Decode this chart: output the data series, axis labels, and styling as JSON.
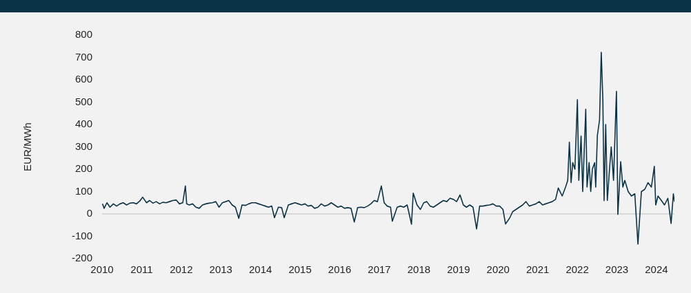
{
  "chart_data": {
    "type": "line",
    "ylabel": "EUR/MWh",
    "xlim": [
      "2010",
      "2024-06-15"
    ],
    "xticks": [
      "2010",
      "2011",
      "2012",
      "2013",
      "2014",
      "2015",
      "2016",
      "2017",
      "2018",
      "2019",
      "2020",
      "2021",
      "2022",
      "2023",
      "2024"
    ],
    "ylim": [
      -200,
      800
    ],
    "yticks": [
      -200,
      -100,
      0,
      100,
      200,
      300,
      400,
      500,
      600,
      700,
      800
    ],
    "grid": false,
    "legend": false,
    "marker": "none",
    "line_style": "solid",
    "ref_lines": [
      {
        "axis": "y",
        "value": 0,
        "color": "#d9d9d9"
      }
    ],
    "x": [
      "2010-01-05",
      "2010-01-20",
      "2010-02-15",
      "2010-03-15",
      "2010-04-15",
      "2010-05-15",
      "2010-06-15",
      "2010-07-15",
      "2010-08-15",
      "2010-09-15",
      "2010-10-15",
      "2010-11-15",
      "2010-12-15",
      "2011-01-10",
      "2011-02-15",
      "2011-03-15",
      "2011-04-15",
      "2011-05-15",
      "2011-06-15",
      "2011-07-15",
      "2011-08-15",
      "2011-09-15",
      "2011-10-15",
      "2011-11-15",
      "2011-12-15",
      "2012-01-15",
      "2012-02-08",
      "2012-02-20",
      "2012-03-15",
      "2012-04-15",
      "2012-05-15",
      "2012-06-15",
      "2012-07-15",
      "2012-08-15",
      "2012-09-15",
      "2012-10-15",
      "2012-11-15",
      "2012-12-15",
      "2013-01-15",
      "2013-02-15",
      "2013-03-15",
      "2013-04-15",
      "2013-05-15",
      "2013-06-15",
      "2013-07-15",
      "2013-08-15",
      "2013-09-15",
      "2013-10-15",
      "2013-11-15",
      "2013-12-15",
      "2014-01-15",
      "2014-02-15",
      "2014-03-15",
      "2014-04-15",
      "2014-05-10",
      "2014-06-15",
      "2014-07-15",
      "2014-08-08",
      "2014-09-15",
      "2014-10-15",
      "2014-11-15",
      "2014-12-15",
      "2015-01-15",
      "2015-02-15",
      "2015-03-15",
      "2015-04-15",
      "2015-05-15",
      "2015-06-15",
      "2015-07-15",
      "2015-08-15",
      "2015-09-15",
      "2015-10-15",
      "2015-11-15",
      "2015-12-15",
      "2016-01-15",
      "2016-02-15",
      "2016-03-15",
      "2016-04-15",
      "2016-05-15",
      "2016-06-15",
      "2016-07-15",
      "2016-08-15",
      "2016-09-15",
      "2016-10-15",
      "2016-11-15",
      "2016-12-15",
      "2017-01-20",
      "2017-02-15",
      "2017-03-15",
      "2017-04-15",
      "2017-05-01",
      "2017-06-15",
      "2017-07-15",
      "2017-08-15",
      "2017-09-15",
      "2017-10-25",
      "2017-11-10",
      "2017-12-15",
      "2018-01-15",
      "2018-02-15",
      "2018-03-15",
      "2018-04-15",
      "2018-05-15",
      "2018-06-15",
      "2018-07-15",
      "2018-08-15",
      "2018-09-15",
      "2018-10-15",
      "2018-11-15",
      "2018-12-15",
      "2019-01-15",
      "2019-02-15",
      "2019-03-15",
      "2019-04-15",
      "2019-05-15",
      "2019-06-17",
      "2019-07-15",
      "2019-08-15",
      "2019-09-15",
      "2019-10-15",
      "2019-11-15",
      "2019-12-15",
      "2020-01-15",
      "2020-02-15",
      "2020-03-10",
      "2020-04-15",
      "2020-05-15",
      "2020-06-15",
      "2020-07-15",
      "2020-08-15",
      "2020-09-15",
      "2020-10-15",
      "2020-11-15",
      "2020-12-15",
      "2021-01-15",
      "2021-02-15",
      "2021-03-15",
      "2021-04-15",
      "2021-05-15",
      "2021-06-15",
      "2021-07-10",
      "2021-08-15",
      "2021-09-15",
      "2021-10-05",
      "2021-10-20",
      "2021-11-05",
      "2021-11-20",
      "2021-12-10",
      "2022-01-02",
      "2022-01-15",
      "2022-02-05",
      "2022-02-20",
      "2022-03-20",
      "2022-04-01",
      "2022-04-20",
      "2022-05-05",
      "2022-05-20",
      "2022-06-10",
      "2022-06-20",
      "2022-07-05",
      "2022-07-25",
      "2022-08-10",
      "2022-08-25",
      "2022-09-05",
      "2022-09-20",
      "2022-10-05",
      "2022-10-25",
      "2022-11-10",
      "2022-12-01",
      "2022-12-28",
      "2023-01-10",
      "2023-02-05",
      "2023-02-25",
      "2023-03-15",
      "2023-04-15",
      "2023-05-15",
      "2023-06-15",
      "2023-07-14",
      "2023-08-15",
      "2023-09-15",
      "2023-10-15",
      "2023-11-15",
      "2023-12-12",
      "2023-12-25",
      "2024-01-15",
      "2024-02-15",
      "2024-03-15",
      "2024-04-15",
      "2024-05-15",
      "2024-06-05",
      "2024-06-15"
    ],
    "series": [
      {
        "color": "#0b3346",
        "values": [
          45,
          25,
          50,
          30,
          45,
          35,
          45,
          50,
          40,
          48,
          50,
          45,
          58,
          75,
          50,
          60,
          48,
          55,
          45,
          52,
          50,
          55,
          60,
          62,
          45,
          50,
          125,
          45,
          40,
          45,
          30,
          25,
          40,
          45,
          48,
          50,
          55,
          30,
          50,
          55,
          60,
          40,
          30,
          -20,
          40,
          38,
          45,
          50,
          50,
          45,
          40,
          35,
          30,
          35,
          -17,
          30,
          28,
          -17,
          40,
          45,
          50,
          45,
          40,
          45,
          35,
          38,
          25,
          30,
          45,
          35,
          40,
          50,
          40,
          30,
          35,
          25,
          28,
          25,
          -36,
          28,
          30,
          28,
          35,
          45,
          60,
          55,
          125,
          50,
          35,
          30,
          -33,
          30,
          35,
          30,
          40,
          -46,
          93,
          40,
          20,
          50,
          55,
          35,
          30,
          40,
          50,
          60,
          55,
          70,
          65,
          55,
          85,
          40,
          30,
          40,
          30,
          -67,
          35,
          35,
          38,
          40,
          45,
          35,
          35,
          20,
          -45,
          -20,
          10,
          20,
          30,
          40,
          55,
          35,
          40,
          45,
          55,
          40,
          45,
          50,
          55,
          65,
          116,
          80,
          120,
          150,
          321,
          140,
          230,
          200,
          511,
          150,
          348,
          100,
          468,
          120,
          230,
          100,
          200,
          229,
          120,
          350,
          420,
          723,
          505,
          59,
          400,
          60,
          200,
          300,
          150,
          548,
          -2,
          234,
          120,
          150,
          100,
          80,
          90,
          -135,
          100,
          110,
          140,
          120,
          213,
          40,
          80,
          60,
          40,
          70,
          -43,
          90,
          55
        ]
      }
    ]
  }
}
